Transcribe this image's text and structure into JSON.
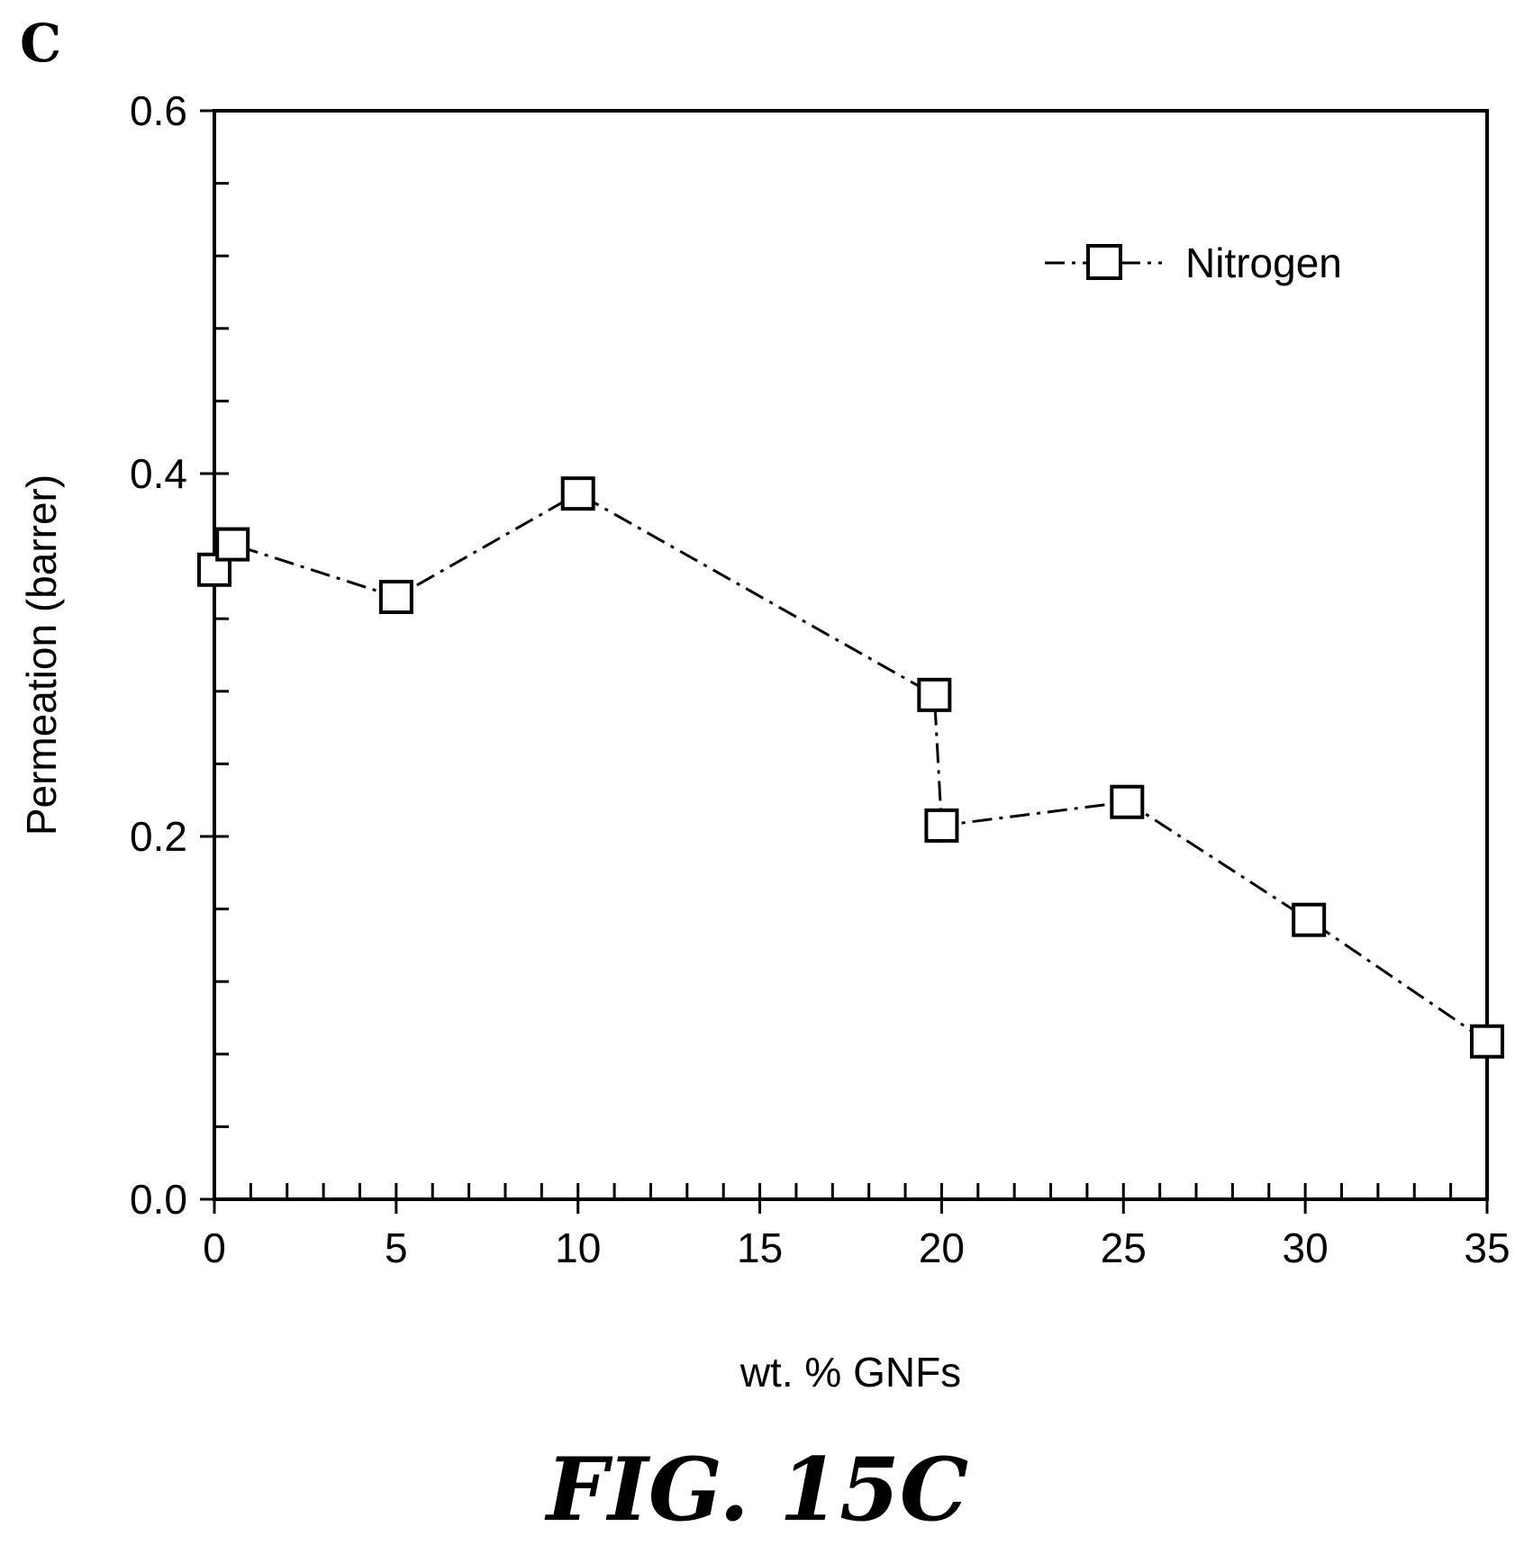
{
  "panel_letter": "C",
  "figure_caption": "FIG. 15C",
  "chart_data": {
    "type": "line",
    "title": "",
    "xlabel": "wt. % GNFs",
    "ylabel": "Permeation (barrer)",
    "xlim": [
      0,
      35
    ],
    "ylim": [
      0.0,
      0.6
    ],
    "x_ticks": [
      0,
      5,
      10,
      15,
      20,
      25,
      30,
      35
    ],
    "x_tick_labels": [
      "0",
      "5",
      "10",
      "15",
      "20",
      "25",
      "30",
      "35"
    ],
    "y_ticks": [
      0.0,
      0.2,
      0.4,
      0.6
    ],
    "y_tick_labels": [
      "0.0",
      "0.2",
      "0.4",
      "0.6"
    ],
    "grid": false,
    "legend_position": "top-right",
    "series": [
      {
        "name": "Nitrogen",
        "marker": "open-square",
        "line_style": "dash-dot",
        "color": "#000000",
        "points": [
          {
            "x": 0.0,
            "y": 0.347
          },
          {
            "x": 0.5,
            "y": 0.361
          },
          {
            "x": 5.0,
            "y": 0.332
          },
          {
            "x": 10.0,
            "y": 0.389
          },
          {
            "x": 19.8,
            "y": 0.278
          },
          {
            "x": 20.0,
            "y": 0.206
          },
          {
            "x": 25.1,
            "y": 0.219
          },
          {
            "x": 30.1,
            "y": 0.154
          },
          {
            "x": 35.0,
            "y": 0.087
          }
        ]
      }
    ]
  }
}
